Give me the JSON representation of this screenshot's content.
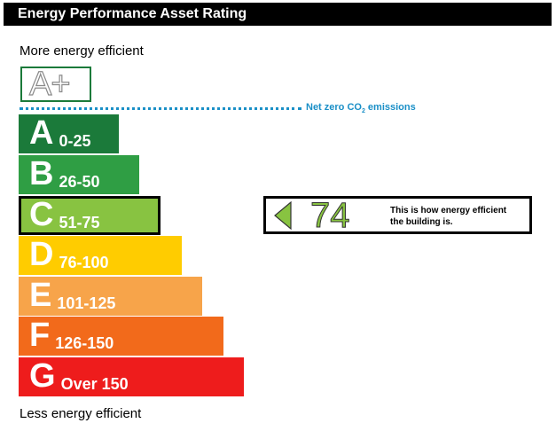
{
  "title": "Energy Performance Asset Rating",
  "more_label": "More energy efficient",
  "less_label": "Less energy efficient",
  "aplus_label": "A+",
  "aplus_color": "#1b7a3a",
  "net_zero": {
    "text": "Net zero CO",
    "subscript": "2",
    "suffix": " emissions",
    "color": "#1a8fc7"
  },
  "bands": [
    {
      "letter": "A",
      "range": "0-25",
      "color": "#1b7a3a",
      "current": false
    },
    {
      "letter": "B",
      "range": "26-50",
      "color": "#2f9e44",
      "current": false
    },
    {
      "letter": "C",
      "range": "51-75",
      "color": "#88c341",
      "current": true
    },
    {
      "letter": "D",
      "range": "76-100",
      "color": "#ffcc00",
      "current": false
    },
    {
      "letter": "E",
      "range": "101-125",
      "color": "#f7a44a",
      "current": false
    },
    {
      "letter": "F",
      "range": "126-150",
      "color": "#f26a1b",
      "current": false
    },
    {
      "letter": "G",
      "range": "Over 150",
      "color": "#ee1c1c",
      "current": false
    }
  ],
  "indicator": {
    "score": "74",
    "text_line1": "This is how energy efficient",
    "text_line2": "the building is.",
    "arrow_icon": "left-arrow-icon",
    "color": "#88c341"
  }
}
